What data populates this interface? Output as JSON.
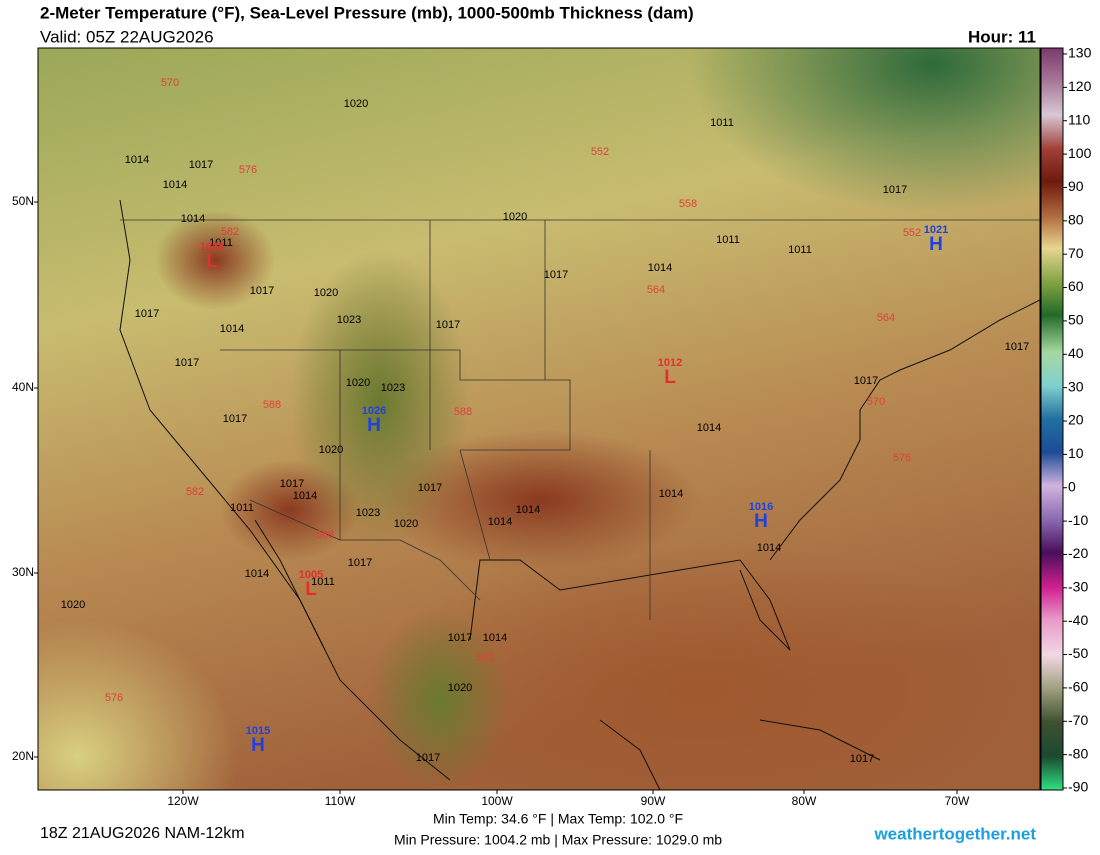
{
  "header": {
    "title": "2-Meter Temperature (°F), Sea-Level Pressure (mb), 1000-500mb Thickness (dam)",
    "valid": "Valid: 05Z 22AUG2026",
    "hour": "Hour: 11"
  },
  "map": {
    "lat_labels": [
      "50N",
      "40N",
      "30N",
      "20N"
    ],
    "lon_labels": [
      "120W",
      "110W",
      "100W",
      "90W",
      "80W",
      "70W"
    ],
    "thickness_labels": [
      "570",
      "552",
      "558",
      "564",
      "564",
      "576",
      "582",
      "588",
      "588",
      "570",
      "576",
      "582",
      "588",
      "582",
      "576",
      "552"
    ],
    "isobar_labels": [
      "1020",
      "1011",
      "1014",
      "1017",
      "1014",
      "1014",
      "1020",
      "1011",
      "1014",
      "1011",
      "1017",
      "1017",
      "1017",
      "1014",
      "1017",
      "1017",
      "1017",
      "1020",
      "1017",
      "1017",
      "1014",
      "1020",
      "1017",
      "1017",
      "1014",
      "1011",
      "1014",
      "1014",
      "1014",
      "1023",
      "1020",
      "1017",
      "1014",
      "1011",
      "1014",
      "1020",
      "1017",
      "1014",
      "1020",
      "1017",
      "1017",
      "1023",
      "1023",
      "1020",
      "1011",
      "1017"
    ],
    "centers": [
      {
        "letter": "L",
        "pressure": "1008"
      },
      {
        "letter": "L",
        "pressure": "1012"
      },
      {
        "letter": "H",
        "pressure": "1026"
      },
      {
        "letter": "H",
        "pressure": "1016"
      },
      {
        "letter": "L",
        "pressure": "1005"
      },
      {
        "letter": "H",
        "pressure": "1015"
      },
      {
        "letter": "H",
        "pressure": "1021"
      }
    ]
  },
  "colorbar": {
    "ticks": [
      130,
      120,
      110,
      100,
      90,
      80,
      70,
      60,
      50,
      40,
      30,
      20,
      10,
      0,
      -10,
      -20,
      -30,
      -40,
      -50,
      -60,
      -70,
      -80,
      -90
    ],
    "lim": [
      -90,
      130
    ]
  },
  "footer": {
    "run": "18Z 21AUG2026 NAM-12km",
    "temp_range": "Min Temp:  34.6 °F | Max Temp: 102.0 °F",
    "pressure_range": "Min Pressure: 1004.2 mb | Max Pressure: 1029.0 mb",
    "site": "weathertogether.net"
  }
}
